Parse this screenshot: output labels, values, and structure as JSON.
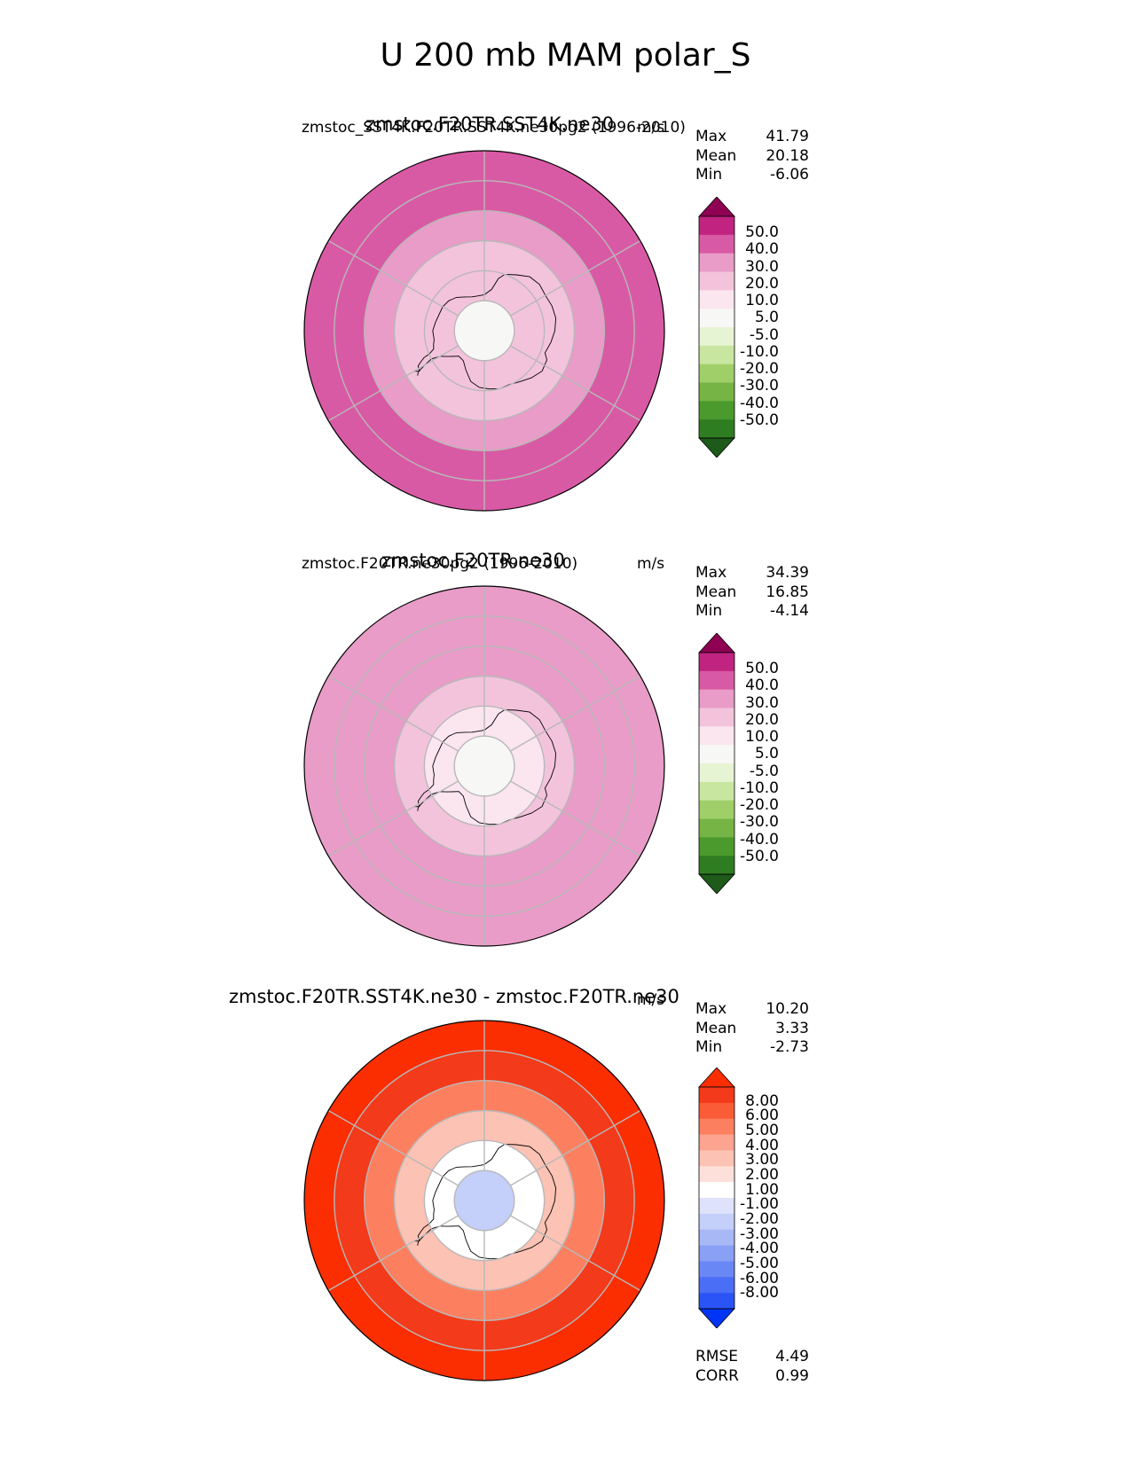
{
  "main_title": "U 200 mb MAM polar_S",
  "colors": {
    "pink_scale": [
      "#1e5a1a",
      "#2f7d21",
      "#4a9a2d",
      "#76b445",
      "#a0cf6a",
      "#c8e6a0",
      "#e6f4d4",
      "#f7f7f5",
      "#fbe5ef",
      "#f3c3dc",
      "#e89cc7",
      "#d95aa4",
      "#c02380",
      "#8e0153"
    ],
    "diff_scale": [
      "#0034f5",
      "#2a54f5",
      "#4a6ef5",
      "#6a88f5",
      "#8aa0f5",
      "#a8b8f7",
      "#c4cffa",
      "#dee3fb",
      "#ffffff",
      "#fde0da",
      "#fcc2b4",
      "#fca48f",
      "#fc8060",
      "#fa5c37",
      "#f33a1a",
      "#fa2e00"
    ],
    "coastline": "#000000",
    "grid": "#b8b8b8"
  },
  "chart_data": [
    {
      "type": "heatmap",
      "projection": "south-polar-stereographic",
      "title": "zmstoc.F20TR.SST4K.ne30",
      "left_label": "zmstoc_SST4K.F20TR.SST4K.ne30pg2 (1996-2010)",
      "units": "m/s",
      "stats": {
        "max_label": "Max",
        "max": "41.79",
        "mean_label": "Mean",
        "mean": "20.18",
        "min_label": "Min",
        "min": "-6.06"
      },
      "colorbar": {
        "palette": "pink_scale",
        "extend": "both",
        "ticks": [
          "50.0",
          "40.0",
          "30.0",
          "20.0",
          "10.0",
          "5.0",
          "-5.0",
          "-10.0",
          "-20.0",
          "-30.0",
          "-40.0",
          "-50.0"
        ]
      },
      "field_bands": [
        {
          "lat": -30,
          "value": 38
        },
        {
          "lat": -40,
          "value": 32
        },
        {
          "lat": -50,
          "value": 26
        },
        {
          "lat": -60,
          "value": 18
        },
        {
          "lat": -70,
          "value": 11
        },
        {
          "lat": -80,
          "value": 3
        }
      ]
    },
    {
      "type": "heatmap",
      "projection": "south-polar-stereographic",
      "title": "zmstoc.F20TR.ne30",
      "left_label": "zmstoc.F20TR.ne30pg2 (1996-2010)",
      "units": "m/s",
      "stats": {
        "max_label": "Max",
        "max": "34.39",
        "mean_label": "Mean",
        "mean": "16.85",
        "min_label": "Min",
        "min": "-4.14"
      },
      "colorbar": {
        "palette": "pink_scale",
        "extend": "both",
        "ticks": [
          "50.0",
          "40.0",
          "30.0",
          "20.0",
          "10.0",
          "5.0",
          "-5.0",
          "-10.0",
          "-20.0",
          "-30.0",
          "-40.0",
          "-50.0"
        ]
      },
      "field_bands": [
        {
          "lat": -30,
          "value": 30
        },
        {
          "lat": -40,
          "value": 25
        },
        {
          "lat": -50,
          "value": 21
        },
        {
          "lat": -60,
          "value": 15
        },
        {
          "lat": -70,
          "value": 9
        },
        {
          "lat": -80,
          "value": 2
        }
      ]
    },
    {
      "type": "heatmap",
      "projection": "south-polar-stereographic",
      "title": "zmstoc.F20TR.SST4K.ne30 - zmstoc.F20TR.ne30",
      "units": "m/s",
      "stats": {
        "max_label": "Max",
        "max": "10.20",
        "mean_label": "Mean",
        "mean": "3.33",
        "min_label": "Min",
        "min": "-2.73"
      },
      "metrics": {
        "rmse_label": "RMSE",
        "rmse": "4.49",
        "corr_label": "CORR",
        "corr": "0.99"
      },
      "colorbar": {
        "palette": "diff_scale",
        "extend": "both",
        "ticks": [
          "8.00",
          "6.00",
          "5.00",
          "4.00",
          "3.00",
          "2.00",
          "1.00",
          "-1.00",
          "-2.00",
          "-3.00",
          "-4.00",
          "-5.00",
          "-6.00",
          "-8.00"
        ]
      },
      "field_bands": [
        {
          "lat": -30,
          "value": 8.5
        },
        {
          "lat": -40,
          "value": 6.5
        },
        {
          "lat": -50,
          "value": 4.5
        },
        {
          "lat": -60,
          "value": 2.5
        },
        {
          "lat": -70,
          "value": 0.5
        },
        {
          "lat": -80,
          "value": -1.5
        }
      ]
    }
  ]
}
